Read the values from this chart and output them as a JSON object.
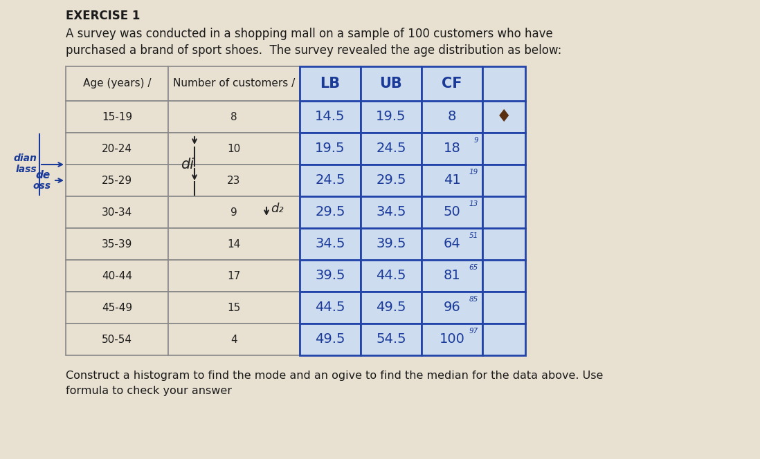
{
  "title_exercise": "EXERCISE 1",
  "paragraph1": "A survey was conducted in a shopping mall on a sample of 100 customers who have",
  "paragraph2": "purchased a brand of sport shoes.  The survey revealed the age distribution as below:",
  "footer1": "Construct a histogram to find the mode and an ogive to find the median for the data above. Use",
  "footer2": "formula to check your answer",
  "col_headers": [
    "Age (years) /",
    "Number of customers /",
    "LB",
    "UB",
    "CF",
    ""
  ],
  "rows": [
    [
      "15-19",
      "8",
      "14.5",
      "19.5",
      "8",
      ""
    ],
    [
      "20-24",
      "10",
      "19.5",
      "24.5",
      "18",
      ""
    ],
    [
      "25-29",
      "23",
      "24.5",
      "29.5",
      "41",
      ""
    ],
    [
      "30-34",
      "9",
      "29.5",
      "34.5",
      "50",
      ""
    ],
    [
      "35-39",
      "14",
      "34.5",
      "39.5",
      "64",
      ""
    ],
    [
      "40-44",
      "17",
      "39.5",
      "44.5",
      "81",
      ""
    ],
    [
      "45-49",
      "15",
      "44.5",
      "49.5",
      "96",
      ""
    ],
    [
      "50-54",
      "4",
      "49.5",
      "54.5",
      "100",
      ""
    ]
  ],
  "bg_color": "#e8e0d0",
  "left_col_bg": "#e8e0d0",
  "right_col_bg": "#cddcee",
  "right_col_border": "#2244aa",
  "left_col_border": "#888888",
  "text_color": "#333333",
  "blue_ink": "#1a3a99",
  "dark_ink": "#222222"
}
